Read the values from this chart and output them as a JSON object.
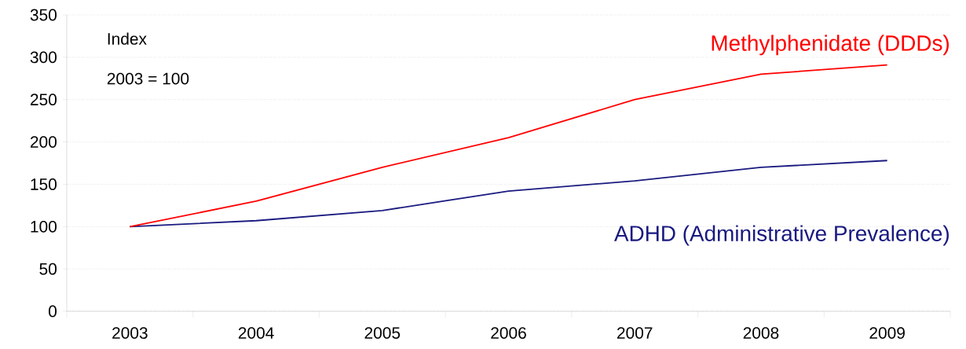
{
  "chart_data": {
    "type": "line",
    "categories": [
      "2003",
      "2004",
      "2005",
      "2006",
      "2007",
      "2008",
      "2009"
    ],
    "series": [
      {
        "name": "Methylphenidate (DDDs)",
        "color": "#ff0000",
        "values": [
          100,
          130,
          170,
          205,
          250,
          280,
          291
        ]
      },
      {
        "name": "ADHD (Administrative Prevalence)",
        "color": "#1a1a80",
        "values": [
          100,
          107,
          119,
          142,
          154,
          170,
          178
        ]
      }
    ],
    "ylim": [
      0,
      350
    ],
    "yticks": [
      0,
      50,
      100,
      150,
      200,
      250,
      300,
      350
    ],
    "grid": "y",
    "marker": "none",
    "line_style": "solid",
    "annotations": [
      "Index",
      "2003 = 100"
    ]
  }
}
